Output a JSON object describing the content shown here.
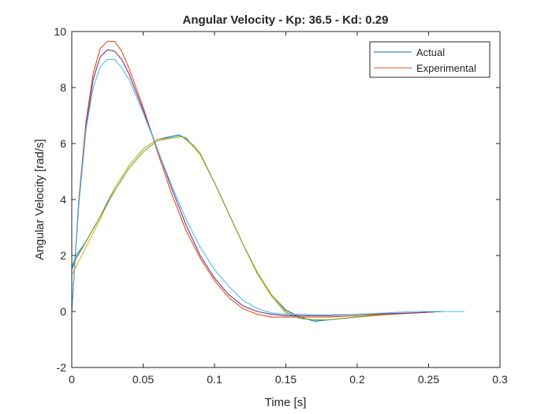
{
  "chart_data": {
    "type": "line",
    "title": "Angular Velocity - Kp: 36.5 - Kd: 0.29",
    "xlabel": "Time [s]",
    "ylabel": "Angular Velocity [rad/s]",
    "xlim": [
      0,
      0.3
    ],
    "ylim": [
      -2,
      10
    ],
    "xticks": [
      "0",
      "0.05",
      "0.1",
      "0.15",
      "0.2",
      "0.25",
      "0.3"
    ],
    "yticks": [
      "10",
      "8",
      "6",
      "4",
      "2",
      "0",
      "-2"
    ],
    "grid": false,
    "legend": {
      "placement": "top-right",
      "entries": [
        {
          "name": "Actual",
          "color": "#0072BD"
        },
        {
          "name": "Experimental",
          "color": "#D95319"
        }
      ]
    },
    "series": [
      {
        "name": "Actual",
        "color": "#0072BD",
        "x": [
          0,
          0.003,
          0.01,
          0.02,
          0.03,
          0.04,
          0.05,
          0.06,
          0.07,
          0.075,
          0.08,
          0.09,
          0.1,
          0.11,
          0.12,
          0.13,
          0.14,
          0.15,
          0.16,
          0.17,
          0.175,
          0.18,
          0.2,
          0.22,
          0.24,
          0.26,
          0.273
        ],
        "y": [
          1.5,
          1.9,
          2.5,
          3.4,
          4.4,
          5.2,
          5.8,
          6.15,
          6.25,
          6.3,
          6.2,
          5.6,
          4.6,
          3.5,
          2.4,
          1.4,
          0.6,
          0.05,
          -0.2,
          -0.35,
          -0.32,
          -0.3,
          -0.2,
          -0.1,
          -0.05,
          0,
          0
        ]
      },
      {
        "name": "",
        "color": "#EDB120",
        "x": [
          0,
          0.003,
          0.01,
          0.02,
          0.03,
          0.04,
          0.05,
          0.06,
          0.07,
          0.078,
          0.085,
          0.09,
          0.1,
          0.11,
          0.12,
          0.13,
          0.14,
          0.15,
          0.16,
          0.17,
          0.18,
          0.2,
          0.22,
          0.24,
          0.26,
          0.273
        ],
        "y": [
          1.3,
          1.6,
          2.3,
          3.3,
          4.4,
          5.2,
          5.8,
          6.15,
          6.2,
          6.25,
          5.9,
          5.6,
          4.6,
          3.5,
          2.4,
          1.4,
          0.6,
          0.0,
          -0.25,
          -0.3,
          -0.3,
          -0.2,
          -0.12,
          -0.05,
          0,
          0
        ]
      },
      {
        "name": "",
        "color": "#77AC30",
        "x": [
          0,
          0.003,
          0.01,
          0.02,
          0.03,
          0.04,
          0.05,
          0.06,
          0.07,
          0.077,
          0.085,
          0.09,
          0.1,
          0.11,
          0.12,
          0.13,
          0.14,
          0.15,
          0.16,
          0.17,
          0.18,
          0.2,
          0.22,
          0.24,
          0.26
        ],
        "y": [
          1.6,
          2.0,
          2.5,
          3.4,
          4.3,
          5.1,
          5.7,
          6.1,
          6.2,
          6.25,
          5.95,
          5.65,
          4.6,
          3.5,
          2.4,
          1.35,
          0.55,
          -0.05,
          -0.25,
          -0.3,
          -0.3,
          -0.2,
          -0.1,
          -0.05,
          0
        ]
      },
      {
        "name": "Experimental",
        "color": "#D95319",
        "x": [
          0,
          0.005,
          0.01,
          0.015,
          0.02,
          0.025,
          0.03,
          0.035,
          0.04,
          0.05,
          0.06,
          0.07,
          0.08,
          0.09,
          0.1,
          0.11,
          0.12,
          0.13,
          0.14,
          0.15,
          0.16,
          0.17,
          0.18,
          0.2,
          0.22,
          0.24,
          0.26,
          0.275
        ],
        "y": [
          0,
          4.0,
          6.8,
          8.5,
          9.4,
          9.65,
          9.65,
          9.3,
          8.7,
          7.3,
          5.7,
          4.2,
          2.9,
          1.9,
          1.1,
          0.5,
          0.1,
          -0.1,
          -0.2,
          -0.2,
          -0.2,
          -0.2,
          -0.2,
          -0.15,
          -0.1,
          -0.05,
          0,
          0
        ]
      },
      {
        "name": "",
        "color": "#7E2F8E",
        "x": [
          0,
          0.005,
          0.01,
          0.015,
          0.02,
          0.025,
          0.03,
          0.035,
          0.04,
          0.05,
          0.06,
          0.07,
          0.08,
          0.09,
          0.1,
          0.11,
          0.12,
          0.13,
          0.14,
          0.15,
          0.16,
          0.17,
          0.18,
          0.2,
          0.22,
          0.24,
          0.26,
          0.275
        ],
        "y": [
          0,
          3.9,
          6.6,
          8.3,
          9.1,
          9.35,
          9.3,
          9.0,
          8.5,
          7.2,
          5.8,
          4.4,
          3.1,
          2.0,
          1.2,
          0.6,
          0.2,
          0.0,
          -0.1,
          -0.15,
          -0.15,
          -0.15,
          -0.15,
          -0.1,
          -0.08,
          -0.05,
          0,
          0
        ]
      },
      {
        "name": "",
        "color": "#4DBEEE",
        "x": [
          0,
          0.005,
          0.01,
          0.015,
          0.02,
          0.025,
          0.03,
          0.035,
          0.04,
          0.05,
          0.06,
          0.07,
          0.08,
          0.09,
          0.1,
          0.11,
          0.12,
          0.13,
          0.14,
          0.15,
          0.16,
          0.17,
          0.18,
          0.2,
          0.22,
          0.24,
          0.26,
          0.275
        ],
        "y": [
          0,
          3.8,
          6.5,
          8.0,
          8.75,
          9.0,
          9.0,
          8.7,
          8.3,
          7.1,
          5.8,
          4.5,
          3.3,
          2.3,
          1.5,
          0.9,
          0.4,
          0.1,
          -0.05,
          -0.1,
          -0.1,
          -0.12,
          -0.12,
          -0.1,
          -0.05,
          0,
          0,
          0
        ]
      }
    ]
  }
}
